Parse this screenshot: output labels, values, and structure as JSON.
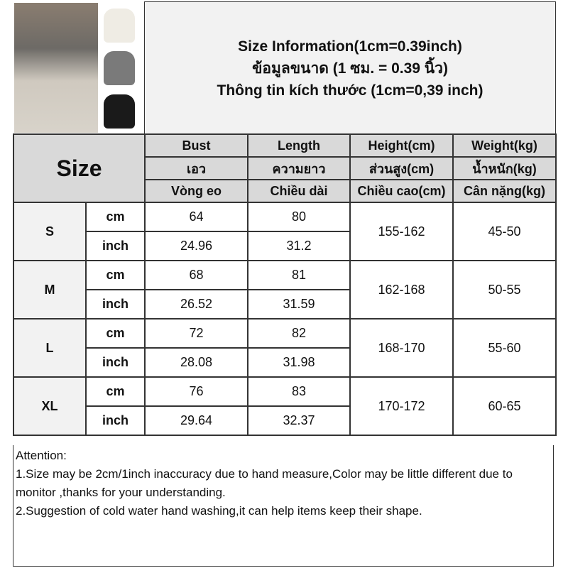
{
  "title_lines": [
    "Size Information(1cm=0.39inch)",
    "ข้อมูลขนาด (1 ซม. = 0.39 นิ้ว)",
    "Thông tin kích thước (1cm=0,39 inch)"
  ],
  "product_colors": [
    "#efece4",
    "#7a7a7a",
    "#1a1a1a"
  ],
  "size_header": "Size",
  "columns": [
    [
      "Bust",
      "เอว",
      "Vòng eo"
    ],
    [
      "Length",
      "ความยาว",
      "Chiều dài"
    ],
    [
      "Height(cm)",
      "ส่วนสูง(cm)",
      "Chiều cao(cm)"
    ],
    [
      "Weight(kg)",
      "น้ำหนัก(kg)",
      "Cân nặng(kg)"
    ]
  ],
  "unit_cm": "cm",
  "unit_inch": "inch",
  "rows": [
    {
      "size": "S",
      "cm": [
        "64",
        "80"
      ],
      "inch": [
        "24.96",
        "31.2"
      ],
      "height": "155-162",
      "weight": "45-50"
    },
    {
      "size": "M",
      "cm": [
        "68",
        "81"
      ],
      "inch": [
        "26.52",
        "31.59"
      ],
      "height": "162-168",
      "weight": "50-55"
    },
    {
      "size": "L",
      "cm": [
        "72",
        "82"
      ],
      "inch": [
        "28.08",
        "31.98"
      ],
      "height": "168-170",
      "weight": "55-60"
    },
    {
      "size": "XL",
      "cm": [
        "76",
        "83"
      ],
      "inch": [
        "29.64",
        "32.37"
      ],
      "height": "170-172",
      "weight": "60-65"
    }
  ],
  "notes": [
    "Attention:",
    "1.Size may be 2cm/1inch inaccuracy due to hand measure,Color may be little different due to monitor ,thanks for your understanding.",
    "2.Suggestion of cold water hand washing,it can help items keep their shape."
  ]
}
